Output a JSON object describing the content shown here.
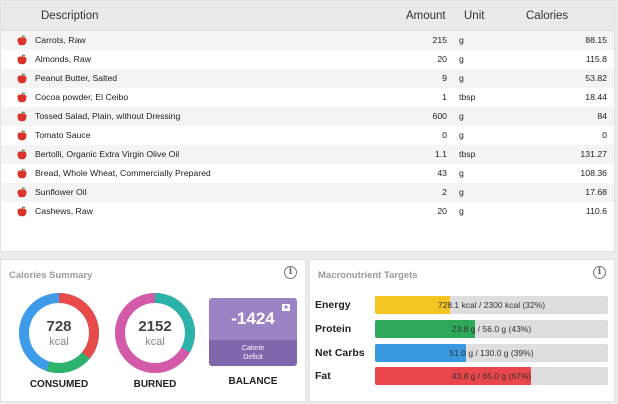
{
  "table": {
    "headers": {
      "description": "Description",
      "amount": "Amount",
      "unit": "Unit",
      "calories": "Calories"
    },
    "rows": [
      {
        "description": "Carrots, Raw",
        "amount": "215",
        "unit": "g",
        "calories": "88.15"
      },
      {
        "description": "Almonds, Raw",
        "amount": "20",
        "unit": "g",
        "calories": "115.8"
      },
      {
        "description": "Peanut Butter, Salted",
        "amount": "9",
        "unit": "g",
        "calories": "53.82"
      },
      {
        "description": "Cocoa powder, El Ceibo",
        "amount": "1",
        "unit": "tbsp",
        "calories": "18.44"
      },
      {
        "description": "Tossed Salad, Plain, without Dressing",
        "amount": "600",
        "unit": "g",
        "calories": "84"
      },
      {
        "description": "Tomato Sauce",
        "amount": "0",
        "unit": "g",
        "calories": "0"
      },
      {
        "description": "Bertolli, Organic Extra Virgin Olive Oil",
        "amount": "1.1",
        "unit": "tbsp",
        "calories": "131.27"
      },
      {
        "description": "Bread, Whole Wheat, Commercially Prepared",
        "amount": "43",
        "unit": "g",
        "calories": "108.36"
      },
      {
        "description": "Sunflower Oil",
        "amount": "2",
        "unit": "g",
        "calories": "17.68"
      },
      {
        "description": "Cashews, Raw",
        "amount": "20",
        "unit": "g",
        "calories": "110.6"
      }
    ],
    "row_icon": "apple-icon"
  },
  "calories_summary": {
    "title": "Calories Summary",
    "info_icon": "info-icon",
    "consumed": {
      "value": "728",
      "unit": "kcal",
      "label": "CONSUMED",
      "colors": [
        "#e84a4a",
        "#2db36b",
        "#3d9be9"
      ]
    },
    "burned": {
      "value": "2152",
      "unit": "kcal",
      "label": "BURNED",
      "colors": [
        "#2bb3a9",
        "#d25aa8"
      ]
    },
    "balance": {
      "value": "-1424",
      "line1": "Calorie",
      "line2": "Deficit",
      "label": "BALANCE",
      "icon": "scale-icon",
      "color_top": "#9b84c5",
      "color_bottom": "#7e67ad"
    }
  },
  "macros": {
    "title": "Macronutrient Targets",
    "info_icon": "info-icon",
    "items": [
      {
        "name": "Energy",
        "text": "728.1 kcal / 2300 kcal (32%)",
        "fraction": 0.32,
        "color": "#f4c520"
      },
      {
        "name": "Protein",
        "text": "23.8 g / 56.0 g (43%)",
        "fraction": 0.43,
        "color": "#2ea85a"
      },
      {
        "name": "Net Carbs",
        "text": "51.0 g / 130.0 g (39%)",
        "fraction": 0.39,
        "color": "#3a98e0"
      },
      {
        "name": "Fat",
        "text": "43.8 g / 65.0 g (67%)",
        "fraction": 0.67,
        "color": "#e9474c"
      }
    ]
  }
}
